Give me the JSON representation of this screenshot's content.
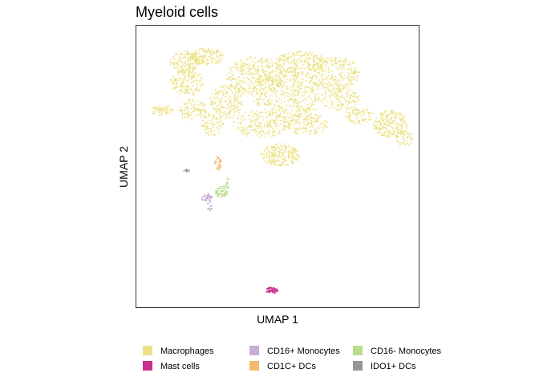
{
  "chart_data": {
    "type": "scatter",
    "title": "Myeloid cells",
    "xlabel": "UMAP 1",
    "ylabel": "UMAP 2",
    "axis_ticks": "none",
    "grid": false,
    "legend_position": "bottom",
    "xlim": [
      0,
      100
    ],
    "ylim": [
      0,
      100
    ],
    "series": [
      {
        "name": "Macrophages",
        "color": "#ECE285",
        "clusters": [
          {
            "x": 17,
            "y": 87,
            "rx": 5,
            "ry": 4,
            "n": 160
          },
          {
            "x": 25,
            "y": 89,
            "rx": 6,
            "ry": 3,
            "n": 160
          },
          {
            "x": 18,
            "y": 80,
            "rx": 6,
            "ry": 5,
            "n": 180
          },
          {
            "x": 20,
            "y": 70,
            "rx": 5,
            "ry": 4,
            "n": 120
          },
          {
            "x": 9,
            "y": 70,
            "rx": 4,
            "ry": 2,
            "n": 70
          },
          {
            "x": 32,
            "y": 73,
            "rx": 6,
            "ry": 6,
            "n": 200
          },
          {
            "x": 27,
            "y": 65,
            "rx": 4,
            "ry": 4,
            "n": 90
          },
          {
            "x": 42,
            "y": 82,
            "rx": 10,
            "ry": 7,
            "n": 380
          },
          {
            "x": 53,
            "y": 76,
            "rx": 12,
            "ry": 9,
            "n": 500
          },
          {
            "x": 58,
            "y": 87,
            "rx": 9,
            "ry": 4,
            "n": 220
          },
          {
            "x": 70,
            "y": 83,
            "rx": 9,
            "ry": 6,
            "n": 300
          },
          {
            "x": 72,
            "y": 74,
            "rx": 7,
            "ry": 4,
            "n": 150
          },
          {
            "x": 44,
            "y": 65,
            "rx": 10,
            "ry": 5,
            "n": 220
          },
          {
            "x": 60,
            "y": 65,
            "rx": 8,
            "ry": 4,
            "n": 160
          },
          {
            "x": 79,
            "y": 68,
            "rx": 5,
            "ry": 3,
            "n": 90
          },
          {
            "x": 90,
            "y": 65,
            "rx": 6,
            "ry": 5,
            "n": 230
          },
          {
            "x": 95,
            "y": 60,
            "rx": 3,
            "ry": 3,
            "n": 50
          },
          {
            "x": 51,
            "y": 54,
            "rx": 7,
            "ry": 4,
            "n": 240
          },
          {
            "x": 62,
            "y": 68,
            "rx": 3,
            "ry": 3,
            "n": 30
          }
        ]
      },
      {
        "name": "CD16+ Monocytes",
        "color": "#C8ACD6",
        "clusters": [
          {
            "x": 25,
            "y": 39,
            "rx": 2,
            "ry": 1.5,
            "n": 40
          },
          {
            "x": 26,
            "y": 36,
            "rx": 1,
            "ry": 2,
            "n": 15
          }
        ]
      },
      {
        "name": "CD16- Monocytes",
        "color": "#B5DD8A",
        "clusters": [
          {
            "x": 30,
            "y": 41,
            "rx": 2.5,
            "ry": 2,
            "n": 60
          },
          {
            "x": 32,
            "y": 44,
            "rx": 1,
            "ry": 2,
            "n": 15
          }
        ]
      },
      {
        "name": "Mast cells",
        "color": "#C9308E",
        "clusters": [
          {
            "x": 48,
            "y": 6,
            "rx": 2.2,
            "ry": 1.1,
            "n": 80
          }
        ]
      },
      {
        "name": "CD1C+ DCs",
        "color": "#F6BA70",
        "clusters": [
          {
            "x": 29,
            "y": 51,
            "rx": 1.2,
            "ry": 2.5,
            "n": 35
          }
        ]
      },
      {
        "name": "IDO1+ DCs",
        "color": "#969696",
        "clusters": [
          {
            "x": 18,
            "y": 48.5,
            "rx": 1.2,
            "ry": 0.5,
            "n": 12
          }
        ]
      }
    ]
  }
}
